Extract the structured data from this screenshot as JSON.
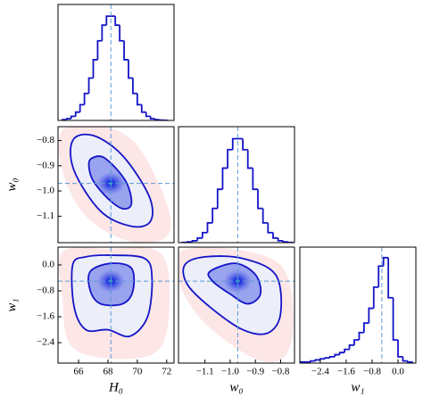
{
  "chart_data": [
    {
      "type": "histogram",
      "color": "#1414c8",
      "xlim": [
        64.6,
        72.5
      ],
      "ylim": [
        0,
        110
      ],
      "truth": [
        68.2
      ],
      "bins": [
        64.9,
        65.2,
        65.5,
        65.8,
        66.1,
        66.4,
        66.7,
        67.0,
        67.3,
        67.6,
        67.9,
        68.2,
        68.5,
        68.8,
        69.1,
        69.4,
        69.7,
        70.0,
        70.3,
        70.6,
        70.9,
        71.2,
        71.5,
        71.8,
        72.1
      ],
      "values": [
        0.7,
        1.7,
        3.9,
        7.9,
        14.9,
        25.6,
        40.2,
        57.6,
        75.5,
        90.4,
        98.9,
        98.9,
        90.4,
        75.5,
        57.6,
        40.2,
        25.6,
        14.9,
        7.9,
        3.9,
        1.7,
        0.7,
        0.3,
        0.1
      ]
    },
    {
      "type": "contour",
      "xlim": [
        64.6,
        72.5
      ],
      "ylim": [
        -1.205,
        -0.745
      ],
      "truth": [
        68.2,
        -0.97
      ],
      "peak": [
        68.2,
        -0.97
      ],
      "ylabel": "w₀",
      "yticks": [
        {
          "value": -1.1,
          "label": "−1.1"
        },
        {
          "value": -1.0,
          "label": "−1.0"
        },
        {
          "value": -0.9,
          "label": "−0.9"
        },
        {
          "value": -0.8,
          "label": "−0.8"
        }
      ],
      "contours": [
        {
          "fill": "#fde6e6",
          "stroke": "none",
          "x": [
            64.9,
            67.5,
            70.0,
            72.0,
            72.0,
            69.5,
            66.5,
            64.9
          ],
          "y": [
            -0.76,
            -0.74,
            -0.82,
            -1.05,
            -1.18,
            -1.2,
            -1.1,
            -0.92
          ]
        },
        {
          "fill": "#eceef9",
          "stroke": "#1414c8",
          "x": [
            65.6,
            67.0,
            69.0,
            70.8,
            70.9,
            69.6,
            67.5,
            65.7
          ],
          "y": [
            -0.8,
            -0.78,
            -0.86,
            -1.02,
            -1.12,
            -1.14,
            -1.08,
            -0.92
          ]
        },
        {
          "fill": "#9aa4ee",
          "stroke": "#1414c8",
          "x": [
            66.9,
            67.8,
            69.2,
            69.6,
            69.0,
            68.0,
            67.0,
            66.7
          ],
          "y": [
            -0.87,
            -0.87,
            -0.96,
            -1.05,
            -1.07,
            -1.03,
            -0.96,
            -0.9
          ]
        }
      ]
    },
    {
      "type": "histogram",
      "color": "#1414c8",
      "xlim": [
        -1.205,
        -0.745
      ],
      "ylim": [
        0,
        110
      ],
      "truth": [
        -0.97
      ],
      "bins": [
        -1.19,
        -1.17,
        -1.15,
        -1.13,
        -1.11,
        -1.09,
        -1.07,
        -1.05,
        -1.03,
        -1.01,
        -0.99,
        -0.97,
        -0.95,
        -0.93,
        -0.91,
        -0.89,
        -0.87,
        -0.85,
        -0.83,
        -0.81,
        -0.79,
        -0.77,
        -0.75
      ],
      "values": [
        0.2,
        0.7,
        1.8,
        4.4,
        9.5,
        18.7,
        32.5,
        50.6,
        70.7,
        88.2,
        98.6,
        98.6,
        88.2,
        70.7,
        50.6,
        32.5,
        18.7,
        9.5,
        4.4,
        1.8,
        0.7,
        0.2
      ]
    },
    {
      "type": "contour",
      "xlim": [
        64.6,
        72.5
      ],
      "ylim": [
        -3.03,
        0.55
      ],
      "truth": [
        68.2,
        -0.5
      ],
      "peak": [
        68.2,
        -0.5
      ],
      "xlabel": "H₀",
      "ylabel": "w₁",
      "xticks": [
        66,
        68,
        70,
        72
      ],
      "yticks": [
        {
          "value": -2.4,
          "label": "−2.4"
        },
        {
          "value": -1.6,
          "label": "−1.6"
        },
        {
          "value": -0.8,
          "label": "−0.8"
        },
        {
          "value": 0,
          "label": "0.0"
        }
      ],
      "contours": [
        {
          "fill": "#fde6e6",
          "stroke": "none",
          "x": [
            64.9,
            68.0,
            71.5,
            72.2,
            71.5,
            68.5,
            65.5,
            64.9
          ],
          "y": [
            0.4,
            0.5,
            0.4,
            -1.0,
            -2.6,
            -2.9,
            -2.5,
            -1.0
          ]
        },
        {
          "fill": "#eceef9",
          "stroke": "#1414c8",
          "x": [
            65.6,
            66.5,
            68.2,
            70.5,
            71.0,
            70.7,
            69.5,
            68.0,
            66.5,
            65.7
          ],
          "y": [
            0.0,
            0.25,
            0.3,
            0.2,
            -0.4,
            -1.6,
            -2.2,
            -2.0,
            -2.0,
            -1.3
          ]
        },
        {
          "fill": "#9aa4ee",
          "stroke": "#1414c8",
          "x": [
            66.8,
            68.2,
            69.6,
            69.7,
            69.0,
            67.5,
            66.8
          ],
          "y": [
            -0.2,
            0.05,
            -0.1,
            -0.8,
            -1.2,
            -1.2,
            -0.8
          ]
        }
      ]
    },
    {
      "type": "contour",
      "xlim": [
        -1.205,
        -0.745
      ],
      "ylim": [
        -3.03,
        0.55
      ],
      "truth": [
        -0.97,
        -0.5
      ],
      "peak": [
        -0.97,
        -0.5
      ],
      "xlabel": "w₀",
      "xticks": [
        {
          "value": -1.1,
          "label": "−1.1"
        },
        {
          "value": -1.0,
          "label": "−1.0"
        },
        {
          "value": -0.9,
          "label": "−0.9"
        },
        {
          "value": -0.8,
          "label": "−0.8"
        }
      ],
      "contours": [
        {
          "fill": "#fde6e6",
          "stroke": "none",
          "x": [
            -1.2,
            -1.0,
            -0.8,
            -0.75,
            -0.78,
            -0.9,
            -1.1,
            -1.2
          ],
          "y": [
            0.4,
            0.5,
            0.0,
            -1.5,
            -2.8,
            -2.9,
            -1.8,
            -0.6
          ]
        },
        {
          "fill": "#eceef9",
          "stroke": "#1414c8",
          "x": [
            -1.18,
            -1.1,
            -0.95,
            -0.82,
            -0.8,
            -0.85,
            -0.95,
            -1.08,
            -1.17
          ],
          "y": [
            0.0,
            0.25,
            0.2,
            -0.3,
            -1.5,
            -2.1,
            -2.0,
            -1.3,
            -0.6
          ]
        },
        {
          "fill": "#9aa4ee",
          "stroke": "#1414c8",
          "x": [
            -1.08,
            -0.98,
            -0.9,
            -0.88,
            -0.93,
            -1.0,
            -1.07
          ],
          "y": [
            -0.2,
            0.05,
            -0.3,
            -0.9,
            -1.2,
            -0.9,
            -0.5
          ]
        }
      ]
    },
    {
      "type": "histogram",
      "color": "#1414c8",
      "xlim": [
        -3.03,
        0.55
      ],
      "ylim": [
        0,
        110
      ],
      "truth": [
        -0.5
      ],
      "xlabel": "w₁",
      "xticks": [
        {
          "value": -2.4,
          "label": "−2.4"
        },
        {
          "value": -1.6,
          "label": "−1.6"
        },
        {
          "value": -0.8,
          "label": "−0.8"
        },
        {
          "value": 0,
          "label": "0.0"
        }
      ],
      "bins": [
        -3.0,
        -2.85,
        -2.7,
        -2.55,
        -2.4,
        -2.25,
        -2.1,
        -1.95,
        -1.8,
        -1.65,
        -1.5,
        -1.35,
        -1.2,
        -1.05,
        -0.9,
        -0.75,
        -0.6,
        -0.45,
        -0.3,
        -0.15,
        0.0,
        0.15,
        0.3,
        0.45
      ],
      "values": [
        1,
        1,
        2,
        3,
        4,
        5,
        6,
        8,
        10,
        13,
        17,
        22,
        29,
        38,
        52,
        72,
        92,
        100,
        62,
        22,
        6,
        2,
        1
      ]
    }
  ]
}
